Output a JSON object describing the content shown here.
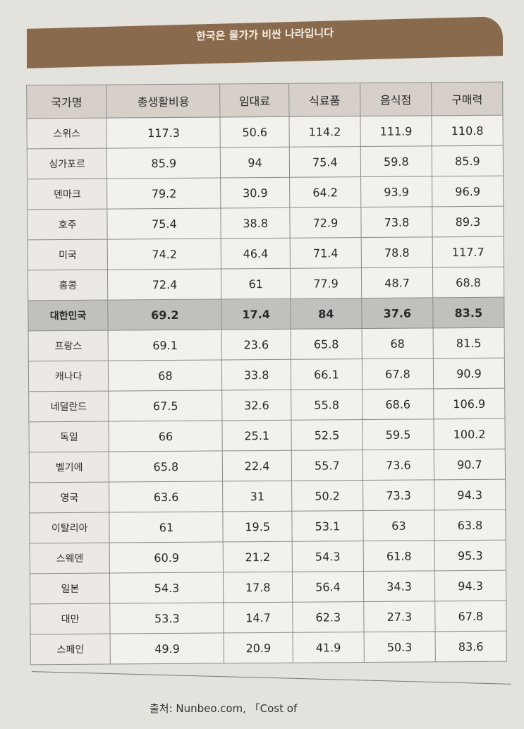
{
  "title": "한국은 물가가 비싼 나라입니다",
  "table": {
    "headers": [
      "국가명",
      "총생활비용",
      "임대료",
      "식료품",
      "음식점",
      "구매력"
    ],
    "highlight_row": "대한민국",
    "rows": [
      [
        "스위스",
        "117.3",
        "50.6",
        "114.2",
        "111.9",
        "110.8"
      ],
      [
        "싱가포르",
        "85.9",
        "94",
        "75.4",
        "59.8",
        "85.9"
      ],
      [
        "덴마크",
        "79.2",
        "30.9",
        "64.2",
        "93.9",
        "96.9"
      ],
      [
        "호주",
        "75.4",
        "38.8",
        "72.9",
        "73.8",
        "89.3"
      ],
      [
        "미국",
        "74.2",
        "46.4",
        "71.4",
        "78.8",
        "117.7"
      ],
      [
        "홍콩",
        "72.4",
        "61",
        "77.9",
        "48.7",
        "68.8"
      ],
      [
        "대한민국",
        "69.2",
        "17.4",
        "84",
        "37.6",
        "83.5"
      ],
      [
        "프랑스",
        "69.1",
        "23.6",
        "65.8",
        "68",
        "81.5"
      ],
      [
        "캐나다",
        "68",
        "33.8",
        "66.1",
        "67.8",
        "90.9"
      ],
      [
        "네덜란드",
        "67.5",
        "32.6",
        "55.8",
        "68.6",
        "106.9"
      ],
      [
        "독일",
        "66",
        "25.1",
        "52.5",
        "59.5",
        "100.2"
      ],
      [
        "벨기에",
        "65.8",
        "22.4",
        "55.7",
        "73.6",
        "90.7"
      ],
      [
        "영국",
        "63.6",
        "31",
        "50.2",
        "73.3",
        "94.3"
      ],
      [
        "이탈리아",
        "61",
        "19.5",
        "53.1",
        "63",
        "63.8"
      ],
      [
        "스웨덴",
        "60.9",
        "21.2",
        "54.3",
        "61.8",
        "95.3"
      ],
      [
        "일본",
        "54.3",
        "17.8",
        "56.4",
        "34.3",
        "94.3"
      ],
      [
        "대만",
        "53.3",
        "14.7",
        "62.3",
        "27.3",
        "67.8"
      ],
      [
        "스페인",
        "49.9",
        "20.9",
        "41.9",
        "50.3",
        "83.6"
      ]
    ]
  },
  "source": "출처: Nunbeo.com, 「Cost of",
  "colors": {
    "banner": "#8a6a4c",
    "header": "#d6d0c8",
    "highlight": "#c2c0bd"
  }
}
